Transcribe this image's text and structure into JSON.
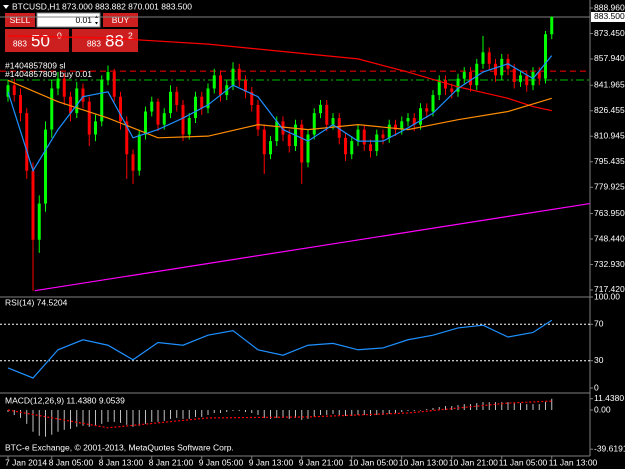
{
  "chart_data": [
    {
      "type": "candlestick",
      "title": "BTCUSD,H1",
      "ohlc_text": "873.000 883.882 870.001 883.500",
      "up_color": "#00ff00",
      "down_color": "#ff0000",
      "categories": [
        "7 Jan 2014",
        null,
        null,
        null,
        null,
        null,
        null,
        "8 Jan 05:00",
        null,
        null,
        null,
        null,
        null,
        null,
        null,
        "8 Jan 13:00",
        null,
        null,
        null,
        null,
        null,
        null,
        null,
        "8 Jan 21:00",
        null,
        null,
        null,
        null,
        null,
        null,
        null,
        "9 Jan 05:00",
        null,
        null,
        null,
        null,
        null,
        null,
        null,
        "9 Jan 13:00",
        null,
        null,
        null,
        null,
        null,
        null,
        null,
        "9 Jan 21:00",
        null,
        null,
        null,
        null,
        null,
        null,
        null,
        "10 Jan 05:00",
        null,
        null,
        null,
        null,
        null,
        null,
        null,
        "10 Jan 13:00",
        null,
        null,
        null,
        null,
        null,
        null,
        null,
        "10 Jan 21:00",
        null,
        null,
        null,
        null,
        null,
        null,
        null,
        "11 Jan 05:00",
        null,
        null,
        null,
        null,
        null,
        null,
        null,
        "11 Jan 13:00"
      ],
      "candles": [
        [
          835,
          845,
          832,
          842
        ],
        [
          842,
          846,
          832,
          836
        ],
        [
          836,
          840,
          820,
          825
        ],
        [
          825,
          828,
          785,
          790
        ],
        [
          790,
          795,
          717,
          748
        ],
        [
          748,
          775,
          740,
          770
        ],
        [
          770,
          820,
          765,
          815
        ],
        [
          815,
          845,
          810,
          840
        ],
        [
          840,
          850,
          836,
          846
        ],
        [
          846,
          849,
          830,
          835
        ],
        [
          835,
          838,
          820,
          825
        ],
        [
          825,
          844,
          822,
          840
        ],
        [
          840,
          843,
          828,
          832
        ],
        [
          832,
          835,
          805,
          812
        ],
        [
          812,
          824,
          808,
          820
        ],
        [
          820,
          848,
          817,
          845
        ],
        [
          845,
          854,
          842,
          850
        ],
        [
          850,
          852,
          832,
          835
        ],
        [
          835,
          838,
          815,
          820
        ],
        [
          820,
          823,
          785,
          800
        ],
        [
          800,
          803,
          782,
          790
        ],
        [
          790,
          815,
          787,
          812
        ],
        [
          812,
          829,
          809,
          826
        ],
        [
          826,
          835,
          823,
          832
        ],
        [
          832,
          834,
          814,
          818
        ],
        [
          818,
          828,
          815,
          825
        ],
        [
          825,
          842,
          822,
          838
        ],
        [
          838,
          841,
          826,
          830
        ],
        [
          830,
          833,
          808,
          812
        ],
        [
          812,
          825,
          809,
          822
        ],
        [
          822,
          838,
          819,
          835
        ],
        [
          835,
          838,
          824,
          828
        ],
        [
          828,
          843,
          825,
          840
        ],
        [
          840,
          852,
          837,
          848
        ],
        [
          848,
          851,
          832,
          836
        ],
        [
          836,
          845,
          833,
          842
        ],
        [
          842,
          856,
          839,
          852
        ],
        [
          852,
          855,
          841,
          845
        ],
        [
          845,
          848,
          834,
          838
        ],
        [
          838,
          841,
          826,
          830
        ],
        [
          830,
          833,
          811,
          815
        ],
        [
          815,
          818,
          788,
          800
        ],
        [
          800,
          811,
          797,
          808
        ],
        [
          808,
          823,
          805,
          820
        ],
        [
          820,
          823,
          808,
          812
        ],
        [
          812,
          815,
          801,
          805
        ],
        [
          805,
          821,
          802,
          818
        ],
        [
          818,
          821,
          782,
          795
        ],
        [
          795,
          815,
          792,
          812
        ],
        [
          812,
          828,
          809,
          825
        ],
        [
          825,
          833,
          822,
          830
        ],
        [
          830,
          833,
          814,
          818
        ],
        [
          818,
          825,
          815,
          822
        ],
        [
          822,
          825,
          806,
          810
        ],
        [
          810,
          813,
          796,
          800
        ],
        [
          800,
          811,
          797,
          808
        ],
        [
          808,
          818,
          805,
          815
        ],
        [
          815,
          818,
          802,
          806
        ],
        [
          806,
          809,
          798,
          802
        ],
        [
          802,
          815,
          799,
          812
        ],
        [
          812,
          815,
          806,
          810
        ],
        [
          810,
          821,
          807,
          818
        ],
        [
          818,
          821,
          811,
          815
        ],
        [
          815,
          823,
          812,
          820
        ],
        [
          820,
          825,
          817,
          822
        ],
        [
          822,
          825,
          814,
          818
        ],
        [
          818,
          831,
          815,
          828
        ],
        [
          828,
          831,
          822,
          826
        ],
        [
          826,
          839,
          823,
          836
        ],
        [
          836,
          848,
          833,
          845
        ],
        [
          845,
          848,
          836,
          840
        ],
        [
          840,
          843,
          834,
          838
        ],
        [
          838,
          849,
          835,
          846
        ],
        [
          846,
          853,
          843,
          850
        ],
        [
          850,
          853,
          838,
          842
        ],
        [
          842,
          858,
          839,
          855
        ],
        [
          855,
          872,
          852,
          862
        ],
        [
          862,
          865,
          851,
          855
        ],
        [
          855,
          858,
          844,
          848
        ],
        [
          848,
          861,
          845,
          858
        ],
        [
          858,
          861,
          848,
          852
        ],
        [
          852,
          855,
          840,
          844
        ],
        [
          844,
          851,
          841,
          848
        ],
        [
          848,
          851,
          838,
          842
        ],
        [
          842,
          853,
          839,
          850
        ],
        [
          850,
          853,
          842,
          846
        ],
        [
          846,
          875,
          843,
          873
        ],
        [
          873,
          883.882,
          870.001,
          883.5
        ]
      ],
      "ylim": [
        713.77,
        893.83
      ],
      "yticks": [
        {
          "value": 888.96,
          "label": "888.960"
        },
        {
          "value": 873.45,
          "label": "873.450"
        },
        {
          "value": 857.94,
          "label": "857.940"
        },
        {
          "value": 841.965,
          "label": "841.965"
        },
        {
          "value": 826.455,
          "label": "826.455"
        },
        {
          "value": 810.945,
          "label": "810.945"
        },
        {
          "value": 795.435,
          "label": "795.435"
        },
        {
          "value": 779.925,
          "label": "779.925"
        },
        {
          "value": 763.95,
          "label": "763.950"
        },
        {
          "value": 748.44,
          "label": "748.440"
        },
        {
          "value": 732.93,
          "label": "732.930"
        },
        {
          "value": 717.42,
          "label": "717.420"
        }
      ],
      "last_price": {
        "value": 883.5,
        "label": "883.500"
      },
      "lines": [
        {
          "color": "#ff0000",
          "x": [
            0,
            16,
            32,
            48,
            56,
            64,
            72,
            80,
            84,
            87
          ],
          "values": [
            872,
            870.7,
            867,
            861,
            858,
            850,
            841,
            834,
            829,
            826.5
          ]
        },
        {
          "color": "#ff8c00",
          "x": [
            0,
            8,
            16,
            24,
            32,
            40,
            48,
            56,
            64,
            72,
            80,
            87
          ],
          "values": [
            845,
            832,
            822,
            810,
            811,
            818,
            815,
            818,
            815,
            821,
            826,
            834
          ]
        },
        {
          "color": "#1e90ff",
          "x": [
            0,
            4,
            8,
            12,
            16,
            20,
            24,
            28,
            32,
            36,
            40,
            44,
            48,
            52,
            56,
            60,
            64,
            68,
            72,
            76,
            80,
            84,
            87
          ],
          "values": [
            838,
            790,
            815,
            835,
            838,
            810,
            815,
            822,
            830,
            842,
            835,
            815,
            808,
            818,
            808,
            808,
            816,
            825,
            840,
            850,
            855,
            846,
            860
          ]
        },
        {
          "color": "#ff00ff",
          "x": [
            4.3,
            93.1
          ],
          "values": [
            717,
            770
          ]
        }
      ],
      "orders": [
        {
          "label": "#1404857809 sl",
          "value": 850.6,
          "color": "#ff0000",
          "style": "dashed"
        },
        {
          "label": "#1404857809 buy 0.01",
          "value": 845.2,
          "color": "#00c000",
          "style": "dashdot"
        }
      ]
    },
    {
      "type": "line",
      "title": "RSI(14) 74.5204",
      "color": "#1e90ff",
      "x": [
        0,
        4,
        8,
        12,
        16,
        20,
        24,
        28,
        32,
        36,
        40,
        44,
        48,
        52,
        56,
        60,
        64,
        68,
        72,
        76,
        80,
        84,
        87
      ],
      "values": [
        22,
        11,
        42,
        53,
        47,
        31,
        50,
        47,
        58,
        63,
        42,
        36,
        47,
        49,
        42,
        44,
        53,
        58,
        66,
        69,
        56,
        61,
        74.5204
      ],
      "ylim": [
        0,
        100
      ],
      "yticks": [
        {
          "value": 100,
          "label": "100.00"
        },
        70,
        30,
        0
      ]
    },
    {
      "type": "bar",
      "title": "MACD(12,26,9) 11.4380 9.0539",
      "color": "#c0c0c0",
      "values": [
        -2,
        -5,
        -8,
        -14,
        -22,
        -26,
        -27,
        -25,
        -22,
        -20,
        -19,
        -17,
        -16,
        -17,
        -16,
        -14,
        -12,
        -12,
        -13,
        -15,
        -17,
        -16,
        -14,
        -12,
        -12,
        -11,
        -9,
        -8,
        -9,
        -9,
        -7,
        -7,
        -5,
        -3,
        -3,
        -2,
        -1,
        -1,
        -2,
        -3,
        -5,
        -8,
        -9,
        -8,
        -8,
        -9,
        -8,
        -10,
        -9,
        -7,
        -5,
        -5,
        -4,
        -5,
        -6,
        -6,
        -5,
        -5,
        -6,
        -5,
        -5,
        -4,
        -3,
        -2,
        -1,
        -1,
        0,
        1,
        2,
        3,
        4,
        4,
        5,
        6,
        6,
        7,
        8,
        8,
        8,
        8,
        8,
        7,
        7,
        6,
        6,
        6,
        8,
        11.438
      ],
      "signal": {
        "color": "#ff0000",
        "x": [
          0,
          16,
          32,
          48,
          64,
          80,
          87
        ],
        "values": [
          0,
          -18,
          -8,
          -7,
          -3,
          7,
          9.0539
        ]
      },
      "ylim": [
        -45.5,
        15.2
      ],
      "yticks": [
        {
          "value": 11.438,
          "label": "11.4380"
        },
        {
          "value": 0,
          "label": "0.00"
        },
        {
          "value": -39.6191,
          "label": "-39.6191"
        }
      ]
    }
  ],
  "trade_panel": {
    "sell": "SELL",
    "buy": "BUY",
    "lot": "0.01",
    "bid": [
      "883",
      "50",
      "0"
    ],
    "ask": [
      "883",
      "88",
      "2"
    ]
  },
  "footer": "BTC-e Exchange, © 2001-2013, MetaQuotes Software Corp."
}
